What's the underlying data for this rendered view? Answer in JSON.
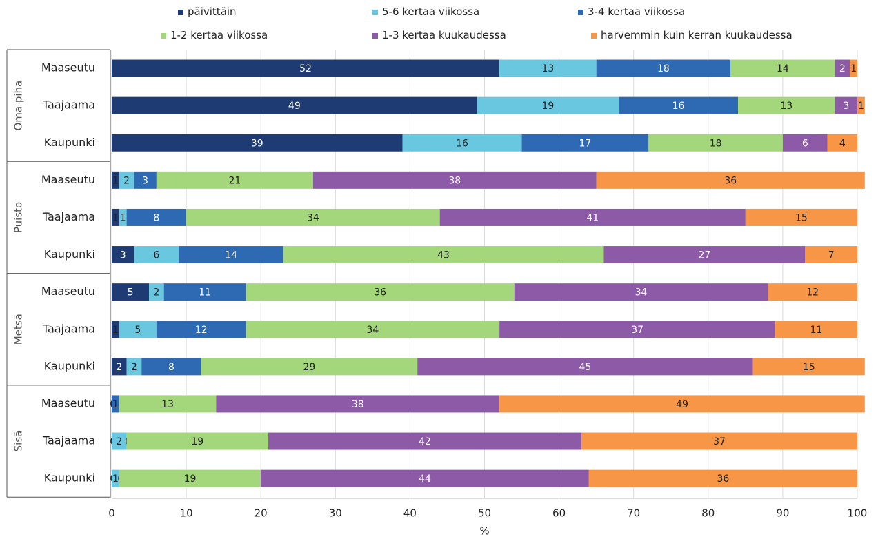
{
  "chart_data": {
    "type": "bar",
    "orientation": "horizontal",
    "stacked": true,
    "xlabel": "%",
    "xlim": [
      0,
      100
    ],
    "xticks": [
      0,
      10,
      20,
      30,
      40,
      50,
      60,
      70,
      80,
      90,
      100
    ],
    "gridlines": "vertical",
    "legend_position": "top",
    "groups": [
      {
        "label": "Oma piha",
        "categories": [
          "Maaseutu",
          "Taajaama",
          "Kaupunki"
        ]
      },
      {
        "label": "Puisto",
        "categories": [
          "Maaseutu",
          "Taajaama",
          "Kaupunki"
        ]
      },
      {
        "label": "Metsä",
        "categories": [
          "Maaseutu",
          "Taajaama",
          "Kaupunki"
        ]
      },
      {
        "label": "Sisä",
        "categories": [
          "Maaseutu",
          "Taajaama",
          "Kaupunki"
        ]
      }
    ],
    "series": [
      {
        "name": "päivittäin",
        "color": "#1f3b73",
        "label_color": "#ffffff",
        "values": [
          52,
          49,
          39,
          1,
          1,
          3,
          5,
          1,
          2,
          0,
          0,
          0
        ]
      },
      {
        "name": "5-6 kertaa viikossa",
        "color": "#69c7e0",
        "label_color": "#222222",
        "values": [
          13,
          19,
          16,
          2,
          1,
          6,
          2,
          5,
          2,
          0,
          2,
          1
        ]
      },
      {
        "name": "3-4 kertaa viikossa",
        "color": "#2e69b3",
        "label_color": "#ffffff",
        "values": [
          18,
          16,
          17,
          3,
          8,
          14,
          11,
          12,
          8,
          1,
          0,
          0
        ]
      },
      {
        "name": "1-2 kertaa viikossa",
        "color": "#a4d67c",
        "label_color": "#222222",
        "values": [
          14,
          13,
          18,
          21,
          34,
          43,
          36,
          34,
          29,
          13,
          19,
          19
        ]
      },
      {
        "name": "1-3 kertaa kuukaudessa",
        "color": "#8d5aa8",
        "label_color": "#ffffff",
        "values": [
          2,
          3,
          6,
          38,
          41,
          27,
          34,
          37,
          45,
          38,
          42,
          44
        ]
      },
      {
        "name": "harvemmin kuin kerran kuukaudessa",
        "color": "#f79646",
        "label_color": "#222222",
        "values": [
          1,
          1,
          4,
          36,
          15,
          7,
          12,
          11,
          15,
          49,
          37,
          36
        ]
      }
    ]
  }
}
